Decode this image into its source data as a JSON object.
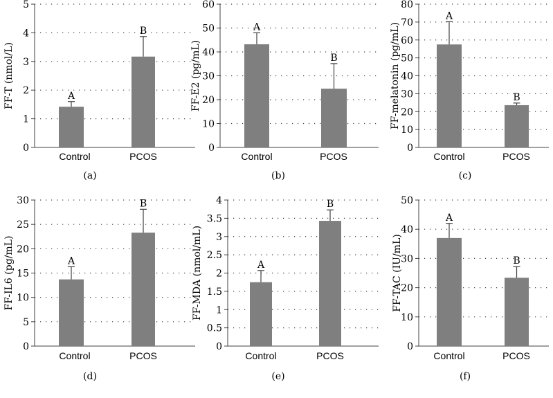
{
  "colors": {
    "bar": "#7f7f7f",
    "axis": "#404040",
    "grid": "#404040",
    "error_bar": "#404040",
    "text": "#000000"
  },
  "chart_data": [
    {
      "type": "bar",
      "panel_label": "(a)",
      "ylabel": "FF-T (nmol/L)",
      "categories": [
        "Control",
        "PCOS"
      ],
      "values": [
        1.42,
        3.17
      ],
      "errors": [
        0.18,
        0.7
      ],
      "significance": [
        "A",
        "B"
      ],
      "ylim": [
        0,
        5
      ],
      "yticks": [
        0,
        1,
        2,
        3,
        4,
        5
      ],
      "ytick_labels": [
        "0",
        "1",
        "2",
        "3",
        "4",
        "5"
      ],
      "grid": true
    },
    {
      "type": "bar",
      "panel_label": "(b)",
      "ylabel": "FF-E2 (pg/mL)",
      "categories": [
        "Control",
        "PCOS"
      ],
      "values": [
        43.2,
        24.6
      ],
      "errors": [
        4.8,
        10.5
      ],
      "significance": [
        "A",
        "B"
      ],
      "ylim": [
        0,
        60
      ],
      "yticks": [
        0,
        10,
        20,
        30,
        40,
        50,
        60
      ],
      "ytick_labels": [
        "0",
        "10",
        "20",
        "30",
        "40",
        "50",
        "60"
      ],
      "grid": true
    },
    {
      "type": "bar",
      "panel_label": "(c)",
      "ylabel": "FF-melatonin (pg/mL)",
      "categories": [
        "Control",
        "PCOS"
      ],
      "values": [
        57.5,
        23.6
      ],
      "errors": [
        12.7,
        1.2
      ],
      "significance": [
        "A",
        "B"
      ],
      "ylim": [
        0,
        80
      ],
      "yticks": [
        0,
        10,
        20,
        30,
        40,
        50,
        60,
        70,
        80
      ],
      "ytick_labels": [
        "0",
        "10",
        "20",
        "30",
        "40",
        "50",
        "60",
        "70",
        "80"
      ],
      "grid": true
    },
    {
      "type": "bar",
      "panel_label": "(d)",
      "ylabel": "FF-IL6 (pg/mL)",
      "categories": [
        "Control",
        "PCOS"
      ],
      "values": [
        13.7,
        23.3
      ],
      "errors": [
        2.6,
        4.8
      ],
      "significance": [
        "A",
        "B"
      ],
      "ylim": [
        0,
        30
      ],
      "yticks": [
        0,
        5,
        10,
        15,
        20,
        25,
        30
      ],
      "ytick_labels": [
        "0",
        "5",
        "10",
        "15",
        "20",
        "25",
        "30"
      ],
      "grid": true
    },
    {
      "type": "bar",
      "panel_label": "(e)",
      "ylabel": "FF-MDA (nmol/mL)",
      "categories": [
        "Control",
        "PCOS"
      ],
      "values": [
        1.75,
        3.43
      ],
      "errors": [
        0.32,
        0.3
      ],
      "significance": [
        "A",
        "B"
      ],
      "ylim": [
        0,
        4
      ],
      "yticks": [
        0,
        0.5,
        1,
        1.5,
        2,
        2.5,
        3,
        3.5,
        4
      ],
      "ytick_labels": [
        "0",
        "0.5",
        "1",
        "1.5",
        "2",
        "2.5",
        "3",
        "3.5",
        "4"
      ],
      "grid": true
    },
    {
      "type": "bar",
      "panel_label": "(f)",
      "ylabel": "FF-TAC (IU/mL)",
      "categories": [
        "Control",
        "PCOS"
      ],
      "values": [
        37.0,
        23.4
      ],
      "errors": [
        5.0,
        3.8
      ],
      "significance": [
        "A",
        "B"
      ],
      "ylim": [
        0,
        50
      ],
      "yticks": [
        0,
        10,
        20,
        30,
        40,
        50
      ],
      "ytick_labels": [
        "0",
        "10",
        "20",
        "30",
        "40",
        "50"
      ],
      "grid": true
    }
  ]
}
